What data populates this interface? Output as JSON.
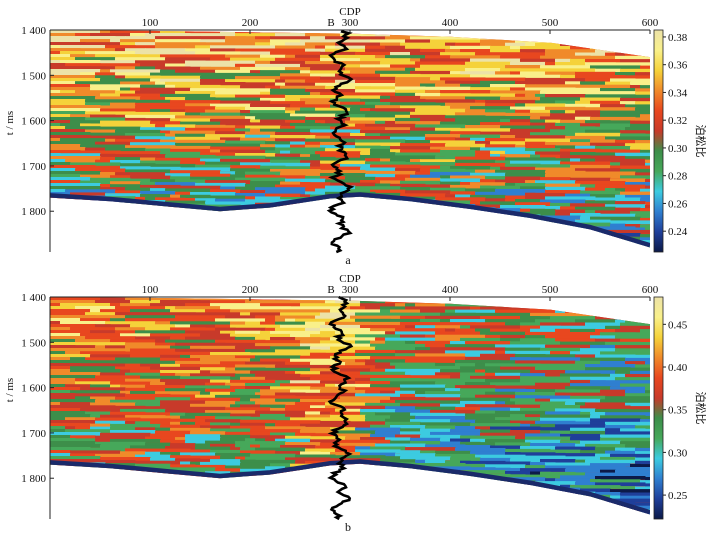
{
  "chart_data": [
    {
      "type": "heatmap",
      "panel_label": "a",
      "xlabel": "CDP",
      "ylabel": "t / ms",
      "well_label": "B",
      "well_cdp": 280,
      "xlim": [
        0,
        600
      ],
      "ylim": [
        1400,
        1890
      ],
      "x_ticks": [
        100,
        200,
        300,
        400,
        500,
        600
      ],
      "x_tick_labels": [
        "100",
        "200",
        "300",
        "400",
        "500",
        "600"
      ],
      "y_ticks": [
        1400,
        1500,
        1600,
        1700,
        1800
      ],
      "y_tick_labels": [
        "1 400",
        "1 500",
        "1 600",
        "1 700",
        "1 800"
      ],
      "colorbar": {
        "label": "泊松比",
        "min": 0.225,
        "max": 0.385,
        "ticks": [
          0.24,
          0.26,
          0.28,
          0.3,
          0.32,
          0.34,
          0.36,
          0.38
        ],
        "tick_labels": [
          "0.24",
          "0.26",
          "0.28",
          "0.30",
          "0.32",
          "0.34",
          "0.36",
          "0.38"
        ]
      },
      "top_boundary": [
        [
          0,
          1400
        ],
        [
          100,
          1402
        ],
        [
          200,
          1405
        ],
        [
          300,
          1408
        ],
        [
          400,
          1415
        ],
        [
          500,
          1428
        ],
        [
          600,
          1460
        ]
      ],
      "bottom_boundary": [
        [
          0,
          1770
        ],
        [
          60,
          1778
        ],
        [
          120,
          1790
        ],
        [
          170,
          1800
        ],
        [
          220,
          1792
        ],
        [
          280,
          1772
        ],
        [
          310,
          1768
        ],
        [
          360,
          1778
        ],
        [
          420,
          1795
        ],
        [
          480,
          1815
        ],
        [
          540,
          1840
        ],
        [
          600,
          1880
        ]
      ]
    },
    {
      "type": "heatmap",
      "panel_label": "b",
      "xlabel": "CDP",
      "ylabel": "t / ms",
      "well_label": "B",
      "well_cdp": 280,
      "xlim": [
        0,
        600
      ],
      "ylim": [
        1400,
        1890
      ],
      "x_ticks": [
        100,
        200,
        300,
        400,
        500,
        600
      ],
      "x_tick_labels": [
        "100",
        "200",
        "300",
        "400",
        "500",
        "600"
      ],
      "y_ticks": [
        1400,
        1500,
        1600,
        1700,
        1800
      ],
      "y_tick_labels": [
        "1 400",
        "1 500",
        "1 600",
        "1 700",
        "1 800"
      ],
      "colorbar": {
        "label": "泊松比",
        "min": 0.222,
        "max": 0.482,
        "ticks": [
          0.25,
          0.3,
          0.35,
          0.4,
          0.45
        ],
        "tick_labels": [
          "0.25",
          "0.30",
          "0.35",
          "0.40",
          "0.45"
        ]
      },
      "top_boundary": [
        [
          0,
          1400
        ],
        [
          100,
          1402
        ],
        [
          200,
          1405
        ],
        [
          300,
          1408
        ],
        [
          400,
          1415
        ],
        [
          500,
          1428
        ],
        [
          600,
          1460
        ]
      ],
      "bottom_boundary": [
        [
          0,
          1770
        ],
        [
          60,
          1778
        ],
        [
          120,
          1790
        ],
        [
          170,
          1800
        ],
        [
          220,
          1792
        ],
        [
          280,
          1772
        ],
        [
          310,
          1768
        ],
        [
          360,
          1778
        ],
        [
          420,
          1795
        ],
        [
          480,
          1815
        ],
        [
          540,
          1840
        ],
        [
          600,
          1880
        ]
      ]
    }
  ]
}
